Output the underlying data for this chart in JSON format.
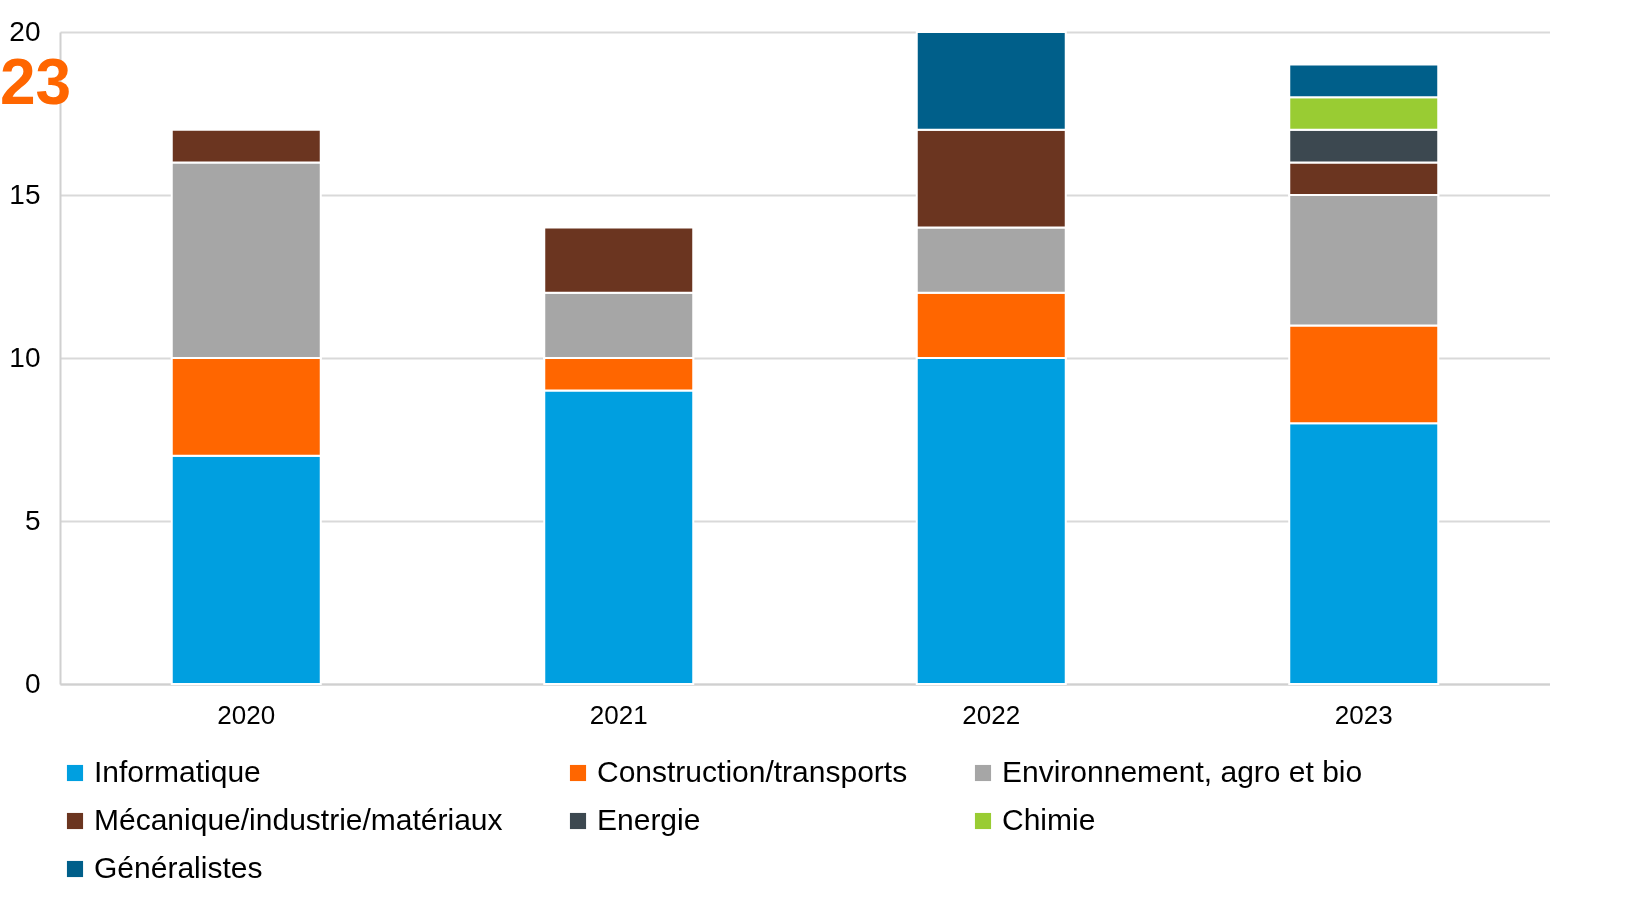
{
  "chart_data": {
    "type": "bar",
    "stacked": true,
    "categories": [
      "2020",
      "2021",
      "2022",
      "2023"
    ],
    "series": [
      {
        "name": "Informatique",
        "color": "#009fe0",
        "values": [
          7,
          9,
          10,
          8
        ]
      },
      {
        "name": "Construction/transports",
        "color": "#ff6600",
        "values": [
          3,
          1,
          2,
          3
        ]
      },
      {
        "name": "Environnement, agro et bio",
        "color": "#a6a6a6",
        "values": [
          6,
          2,
          2,
          4
        ]
      },
      {
        "name": "Mécanique/industrie/matériaux",
        "color": "#6b3520",
        "values": [
          1,
          2,
          3,
          1
        ]
      },
      {
        "name": "Energie",
        "color": "#3c4850",
        "values": [
          null,
          null,
          null,
          1
        ]
      },
      {
        "name": "Chimie",
        "color": "#99cc33",
        "values": [
          null,
          null,
          null,
          1
        ]
      },
      {
        "name": "Généralistes",
        "color": "#005f8a",
        "values": [
          null,
          null,
          3,
          1
        ]
      }
    ],
    "ylim": [
      0,
      20
    ],
    "yticks": [
      0,
      5,
      10,
      15,
      20
    ],
    "grid": "y",
    "legend": "bottom",
    "annotations": [
      "23"
    ]
  }
}
